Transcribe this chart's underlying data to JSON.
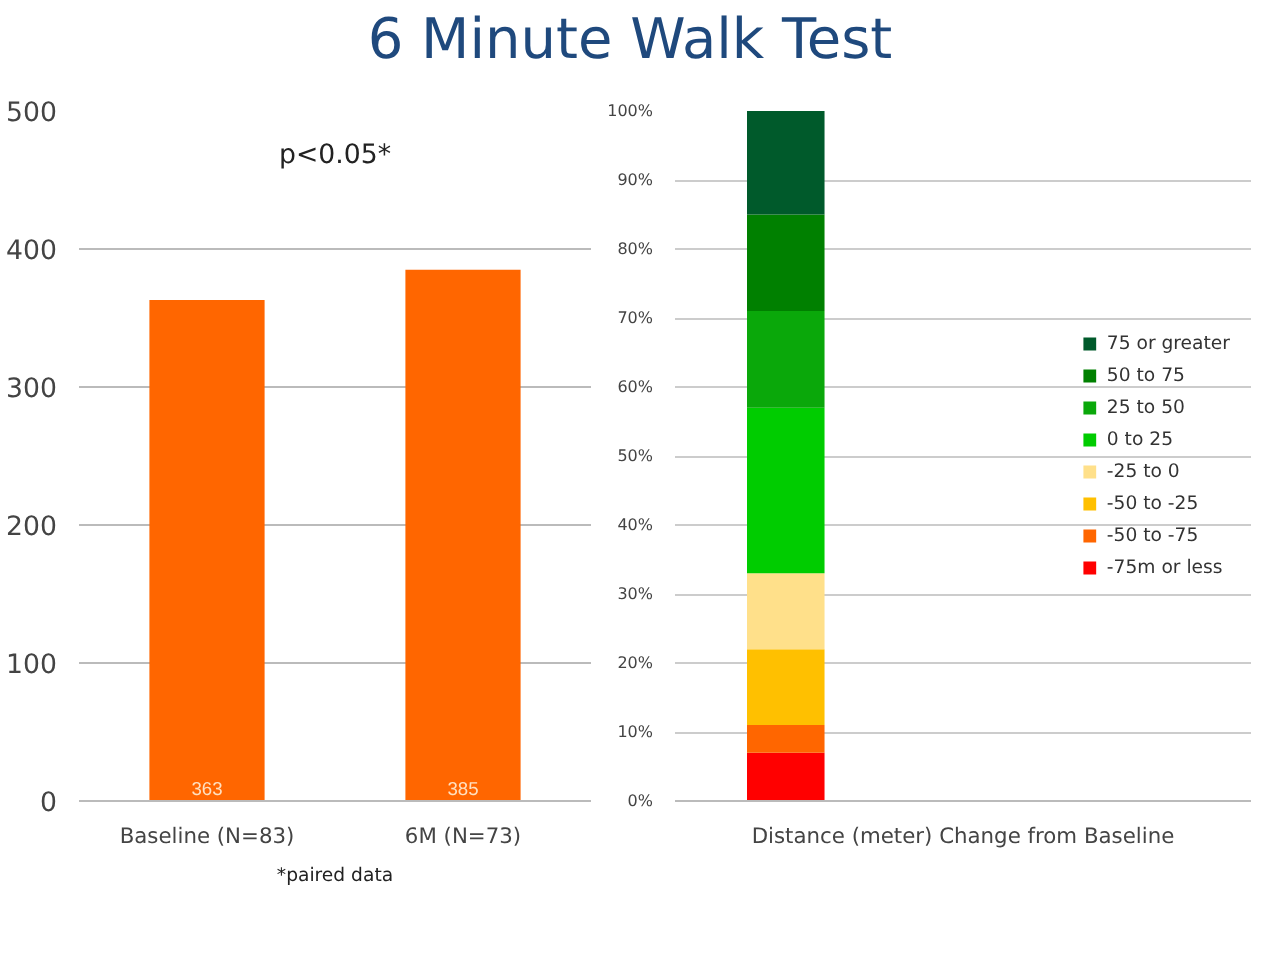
{
  "chart_data": [
    {
      "type": "bar",
      "title": "6 Minute Walk Test",
      "categories": [
        "Baseline (N=83)",
        "6M (N=73)"
      ],
      "values": [
        363,
        385
      ],
      "color": "#ff6600",
      "ylim": [
        0,
        500
      ],
      "yticks": [
        0,
        100,
        200,
        300,
        400,
        500
      ],
      "grid": "y",
      "data_labels": true,
      "annotations": [
        "p<0.05*",
        "*paired data"
      ]
    },
    {
      "type": "bar",
      "stacked": true,
      "categories": [
        null
      ],
      "xlabel": "Distance (meter) Change from Baseline",
      "ylim": [
        0,
        100
      ],
      "yticks": [
        {
          "value": 0,
          "label": "0%"
        },
        {
          "value": 10,
          "label": "10%"
        },
        {
          "value": 20,
          "label": "20%"
        },
        {
          "value": 30,
          "label": "30%"
        },
        {
          "value": 40,
          "label": "40%"
        },
        {
          "value": 50,
          "label": "50%"
        },
        {
          "value": 60,
          "label": "60%"
        },
        {
          "value": 70,
          "label": "70%"
        },
        {
          "value": 80,
          "label": "80%"
        },
        {
          "value": 90,
          "label": "90%"
        },
        {
          "value": 100,
          "label": "100%"
        }
      ],
      "grid": "y",
      "legend": "right",
      "series": [
        {
          "name": "-75m or less",
          "color": "#ff0000",
          "values": [
            7
          ]
        },
        {
          "name": "-50 to -75",
          "color": "#ff6600",
          "values": [
            4
          ]
        },
        {
          "name": "-50 to -25",
          "color": "#ffc000",
          "values": [
            11
          ]
        },
        {
          "name": "-25 to 0",
          "color": "#ffe08a",
          "values": [
            11
          ]
        },
        {
          "name": "0 to 25",
          "color": "#00cc00",
          "values": [
            24
          ]
        },
        {
          "name": "25 to 50",
          "color": "#0aa80a",
          "values": [
            14
          ]
        },
        {
          "name": "50 to 75",
          "color": "#008000",
          "values": [
            14
          ]
        },
        {
          "name": "75 or greater",
          "color": "#005a2b",
          "values": [
            15
          ]
        }
      ]
    }
  ]
}
